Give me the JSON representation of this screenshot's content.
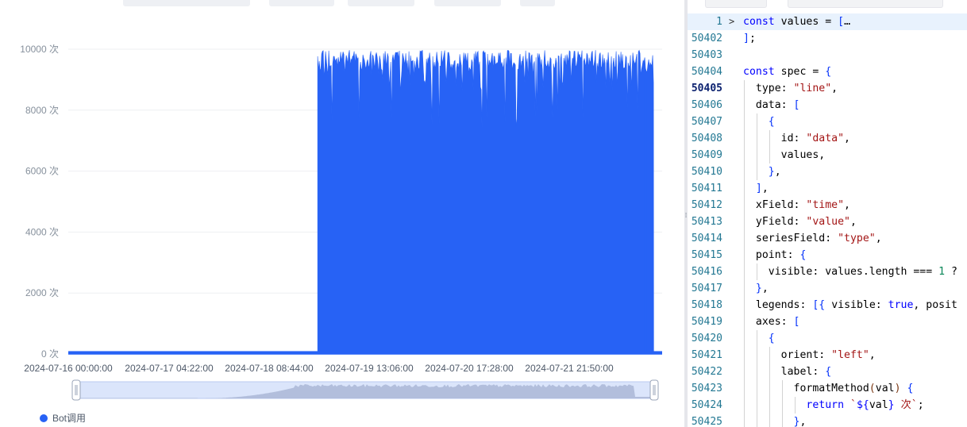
{
  "chart_data": {
    "type": "bar",
    "title": "",
    "xlabel": "",
    "ylabel": "",
    "y_unit": "次",
    "ylim": [
      0,
      10000
    ],
    "y_ticks": [
      0,
      2000,
      4000,
      6000,
      8000,
      10000
    ],
    "x_range": [
      "2024-07-16 00:00:00",
      "2024-07-22 08:00:00"
    ],
    "x_tick_labels": [
      "2024-07-16 00:00:00",
      "2024-07-17 04:22:00",
      "2024-07-18 08:44:00",
      "2024-07-19 13:06:00",
      "2024-07-20 17:28:00",
      "2024-07-21 21:50:00"
    ],
    "grid": true,
    "legend_position": "bottom-left",
    "series": [
      {
        "name": "Bot调用",
        "color": "#2762f5",
        "segments": [
          {
            "start": "2024-07-16 00:00:00",
            "end": "2024-07-18 15:50:00",
            "value_range": [
              0,
              80
            ]
          },
          {
            "start": "2024-07-18 15:50:00",
            "end": "2024-07-22 05:50:00",
            "value_range": [
              7400,
              9970
            ]
          },
          {
            "start": "2024-07-22 05:50:00",
            "end": "2024-07-22 08:00:00",
            "value_range": [
              0,
              80
            ]
          }
        ]
      }
    ],
    "datazoom": {
      "start": 0,
      "end": 1
    }
  },
  "editor": {
    "lines": [
      {
        "num": "1",
        "fold": ">",
        "code": "const values = […"
      },
      {
        "num": "50402",
        "code": "];"
      },
      {
        "num": "50403",
        "code": ""
      },
      {
        "num": "50404",
        "code": "const spec = {"
      },
      {
        "num": "50405",
        "code": "  type: \"line\","
      },
      {
        "num": "50406",
        "code": "  data: ["
      },
      {
        "num": "50407",
        "code": "    {"
      },
      {
        "num": "50408",
        "code": "      id: \"data\","
      },
      {
        "num": "50409",
        "code": "      values,"
      },
      {
        "num": "50410",
        "code": "    },"
      },
      {
        "num": "50411",
        "code": "  ],"
      },
      {
        "num": "50412",
        "code": "  xField: \"time\","
      },
      {
        "num": "50413",
        "code": "  yField: \"value\","
      },
      {
        "num": "50414",
        "code": "  seriesField: \"type\","
      },
      {
        "num": "50415",
        "code": "  point: {"
      },
      {
        "num": "50416",
        "code": "    visible: values.length === 1 ?"
      },
      {
        "num": "50417",
        "code": "  },"
      },
      {
        "num": "50418",
        "code": "  legends: [{ visible: true, posit"
      },
      {
        "num": "50419",
        "code": "  axes: ["
      },
      {
        "num": "50420",
        "code": "    {"
      },
      {
        "num": "50421",
        "code": "      orient: \"left\","
      },
      {
        "num": "50422",
        "code": "      label: {"
      },
      {
        "num": "50423",
        "code": "        formatMethod(val) {"
      },
      {
        "num": "50424",
        "code": "          return `${val} 次`;"
      },
      {
        "num": "50425",
        "code": "        },"
      }
    ],
    "current_line": "50405"
  }
}
